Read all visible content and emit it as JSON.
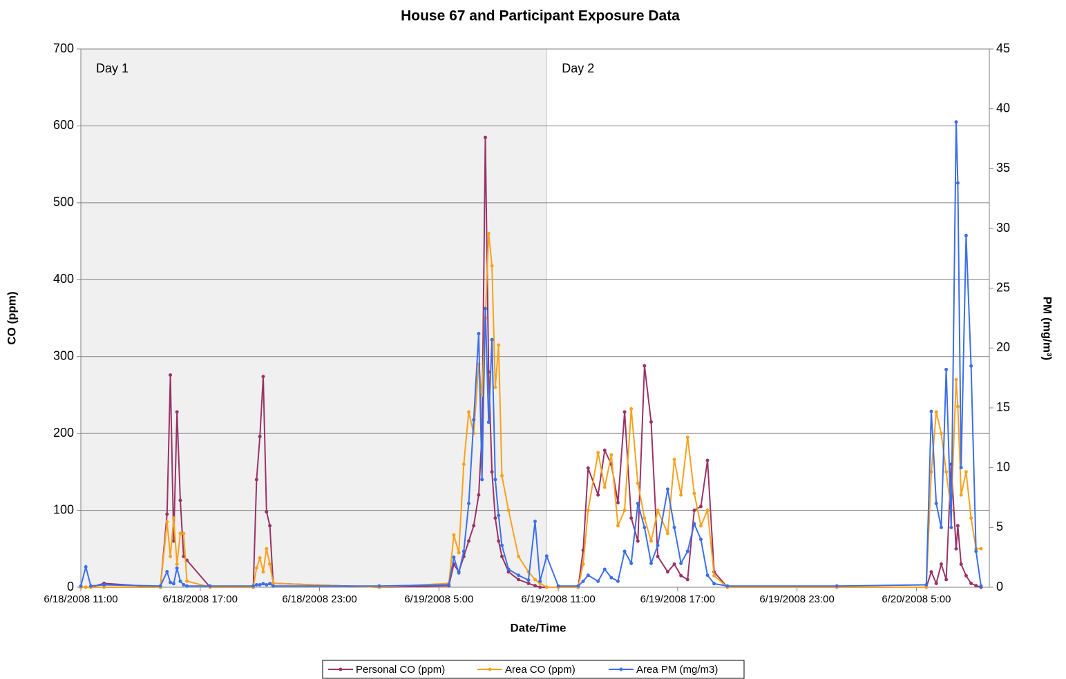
{
  "chart_data": {
    "type": "line",
    "title": "House 67 and Participant Exposure Data",
    "xlabel": "Date/Time",
    "ylabel": "CO (ppm)",
    "y2label": "PM (mg/m³)",
    "x": [
      "2008-06-18 11:00",
      "2008-06-18 11:15",
      "2008-06-18 11:30",
      "2008-06-18 12:10",
      "2008-06-18 15:00",
      "2008-06-18 15:20",
      "2008-06-18 15:30",
      "2008-06-18 15:40",
      "2008-06-18 15:50",
      "2008-06-18 16:00",
      "2008-06-18 16:10",
      "2008-06-18 16:20",
      "2008-06-18 17:30",
      "2008-06-18 19:40",
      "2008-06-18 19:50",
      "2008-06-18 20:00",
      "2008-06-18 20:10",
      "2008-06-18 20:20",
      "2008-06-18 20:30",
      "2008-06-18 20:40",
      "2008-06-19 02:00",
      "2008-06-19 05:30",
      "2008-06-19 05:45",
      "2008-06-19 06:00",
      "2008-06-19 06:15",
      "2008-06-19 06:30",
      "2008-06-19 06:45",
      "2008-06-19 07:00",
      "2008-06-19 07:10",
      "2008-06-19 07:20",
      "2008-06-19 07:30",
      "2008-06-19 07:40",
      "2008-06-19 07:50",
      "2008-06-19 08:00",
      "2008-06-19 08:10",
      "2008-06-19 08:30",
      "2008-06-19 09:00",
      "2008-06-19 09:30",
      "2008-06-19 09:50",
      "2008-06-19 10:05",
      "2008-06-19 10:25",
      "2008-06-19 11:00",
      "2008-06-19 12:00",
      "2008-06-19 12:15",
      "2008-06-19 12:30",
      "2008-06-19 13:00",
      "2008-06-19 13:20",
      "2008-06-19 13:40",
      "2008-06-19 14:00",
      "2008-06-19 14:20",
      "2008-06-19 14:40",
      "2008-06-19 15:00",
      "2008-06-19 15:20",
      "2008-06-19 15:40",
      "2008-06-19 16:00",
      "2008-06-19 16:30",
      "2008-06-19 16:50",
      "2008-06-19 17:10",
      "2008-06-19 17:30",
      "2008-06-19 17:50",
      "2008-06-19 18:10",
      "2008-06-19 18:30",
      "2008-06-19 18:50",
      "2008-06-19 19:30",
      "2008-06-20 01:00",
      "2008-06-20 05:30",
      "2008-06-20 05:45",
      "2008-06-20 06:00",
      "2008-06-20 06:15",
      "2008-06-20 06:30",
      "2008-06-20 06:45",
      "2008-06-20 07:00",
      "2008-06-20 07:05",
      "2008-06-20 07:15",
      "2008-06-20 07:30",
      "2008-06-20 07:45",
      "2008-06-20 08:00",
      "2008-06-20 08:15"
    ],
    "series": [
      {
        "name": "Personal CO (ppm)",
        "color": "#993366",
        "values": [
          0,
          0,
          0,
          5,
          0,
          95,
          276,
          60,
          228,
          113,
          40,
          35,
          0,
          0,
          140,
          196,
          274,
          98,
          80,
          5,
          0,
          2,
          30,
          20,
          40,
          60,
          80,
          120,
          200,
          585,
          280,
          150,
          90,
          60,
          40,
          20,
          10,
          5,
          2,
          0,
          0,
          0,
          0,
          48,
          155,
          120,
          178,
          160,
          110,
          228,
          90,
          60,
          288,
          215,
          40,
          20,
          30,
          15,
          10,
          100,
          105,
          165,
          20,
          0,
          0,
          0,
          20,
          5,
          30,
          10,
          160,
          50,
          80,
          30,
          15,
          5,
          2,
          0
        ]
      },
      {
        "name": "Area CO (ppm)",
        "color": "#f9a11b",
        "values": [
          0,
          0,
          0,
          0,
          0,
          85,
          40,
          90,
          30,
          70,
          70,
          8,
          0,
          0,
          25,
          38,
          20,
          50,
          30,
          5,
          0,
          5,
          68,
          45,
          160,
          228,
          200,
          290,
          250,
          350,
          460,
          418,
          260,
          315,
          145,
          100,
          40,
          20,
          10,
          5,
          0,
          0,
          0,
          30,
          100,
          175,
          130,
          172,
          80,
          100,
          232,
          135,
          90,
          60,
          100,
          70,
          166,
          120,
          195,
          122,
          80,
          100,
          15,
          0,
          0,
          0,
          150,
          228,
          200,
          150,
          100,
          270,
          235,
          120,
          150,
          90,
          50,
          50
        ]
      },
      {
        "name": "Area PM (mg/m3)",
        "color": "#3c6ee8",
        "axis": "y2",
        "values": [
          0.1,
          1.7,
          0.1,
          0.2,
          0.1,
          1.3,
          0.4,
          0.3,
          1.6,
          0.5,
          0.2,
          0.1,
          0.1,
          0.1,
          0.2,
          0.2,
          0.3,
          0.2,
          0.3,
          0.1,
          0.1,
          0.2,
          2.5,
          1.2,
          3,
          7,
          14,
          21.2,
          9,
          23.3,
          13.8,
          20.7,
          9,
          6,
          3.5,
          1.5,
          1,
          0.6,
          5.5,
          0.5,
          2.6,
          0.1,
          0.1,
          0.5,
          1,
          0.5,
          1.5,
          0.8,
          0.5,
          3,
          2,
          7,
          5,
          2,
          3.5,
          8.2,
          5,
          2,
          3,
          5.3,
          4,
          1,
          0.3,
          0.1,
          0.1,
          0.2,
          14.7,
          7,
          5,
          18.2,
          5,
          38.9,
          33.8,
          10,
          29.4,
          18.5,
          3,
          0.1
        ]
      }
    ],
    "xlim": [
      "2008-06-18 11:00",
      "2008-06-20 08:40"
    ],
    "xticks": [
      {
        "value": "2008-06-18 11:00",
        "label": "6/18/2008 11:00"
      },
      {
        "value": "2008-06-18 17:00",
        "label": "6/18/2008 17:00"
      },
      {
        "value": "2008-06-18 23:00",
        "label": "6/18/2008 23:00"
      },
      {
        "value": "2008-06-19 05:00",
        "label": "6/19/2008 5:00"
      },
      {
        "value": "2008-06-19 11:00",
        "label": "6/19/2008 11:00"
      },
      {
        "value": "2008-06-19 17:00",
        "label": "6/19/2008 17:00"
      },
      {
        "value": "2008-06-19 23:00",
        "label": "6/19/2008 23:00"
      },
      {
        "value": "2008-06-20 05:00",
        "label": "6/20/2008 5:00"
      }
    ],
    "ylim": [
      0,
      700
    ],
    "yticks": [
      0,
      100,
      200,
      300,
      400,
      500,
      600,
      700
    ],
    "y2lim": [
      0,
      45
    ],
    "y2ticks": [
      0,
      5,
      10,
      15,
      20,
      25,
      30,
      35,
      40,
      45
    ],
    "grid": true,
    "legend": "bottom",
    "regions": [
      {
        "label": "Day 1",
        "start": "2008-06-18 11:00",
        "end": "2008-06-19 10:25",
        "color": "#f0f0f0"
      },
      {
        "label": "Day 2",
        "start": "2008-06-19 10:25",
        "end": "2008-06-20 08:40",
        "color": "#ffffff"
      }
    ]
  }
}
